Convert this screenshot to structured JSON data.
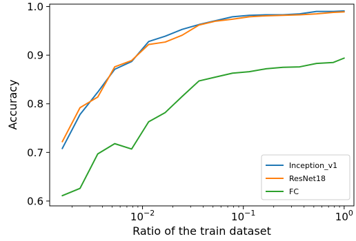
{
  "chart_data": {
    "type": "line",
    "xscale": "log",
    "xlabel": "Ratio of the train dataset",
    "ylabel": "Accuracy",
    "xlim": [
      0.0012,
      1.25
    ],
    "ylim": [
      0.59,
      1.005
    ],
    "grid": false,
    "legend_position": "lower-right",
    "xticks": [
      {
        "value": 0.01,
        "base": "10",
        "exp": "−2"
      },
      {
        "value": 0.1,
        "base": "10",
        "exp": "−1"
      },
      {
        "value": 1,
        "base": "10",
        "exp": "0"
      }
    ],
    "yticks": [
      {
        "value": 0.6,
        "label": "0.6"
      },
      {
        "value": 0.7,
        "label": "0.7"
      },
      {
        "value": 0.8,
        "label": "0.8"
      },
      {
        "value": 0.9,
        "label": "0.9"
      },
      {
        "value": 1.0,
        "label": "1.0"
      }
    ],
    "x": [
      0.0016,
      0.0024,
      0.0036,
      0.0053,
      0.0078,
      0.0115,
      0.0168,
      0.0247,
      0.0363,
      0.0532,
      0.0781,
      0.1146,
      0.1682,
      0.2468,
      0.3623,
      0.5317,
      0.7803,
      1.0
    ],
    "series": [
      {
        "name": "Inception_v1",
        "color": "#1f77b4",
        "values": [
          0.708,
          0.778,
          0.824,
          0.871,
          0.887,
          0.928,
          0.939,
          0.953,
          0.963,
          0.971,
          0.979,
          0.982,
          0.983,
          0.983,
          0.985,
          0.99,
          0.99,
          0.991
        ]
      },
      {
        "name": "ResNet18",
        "color": "#ff7f0e",
        "values": [
          0.722,
          0.792,
          0.814,
          0.876,
          0.889,
          0.922,
          0.927,
          0.941,
          0.962,
          0.97,
          0.974,
          0.979,
          0.981,
          0.982,
          0.983,
          0.985,
          0.988,
          0.989
        ]
      },
      {
        "name": "FC",
        "color": "#2ca02c",
        "values": [
          0.611,
          0.626,
          0.697,
          0.718,
          0.707,
          0.763,
          0.782,
          0.815,
          0.847,
          0.855,
          0.863,
          0.866,
          0.872,
          0.875,
          0.876,
          0.883,
          0.885,
          0.894
        ]
      }
    ]
  }
}
